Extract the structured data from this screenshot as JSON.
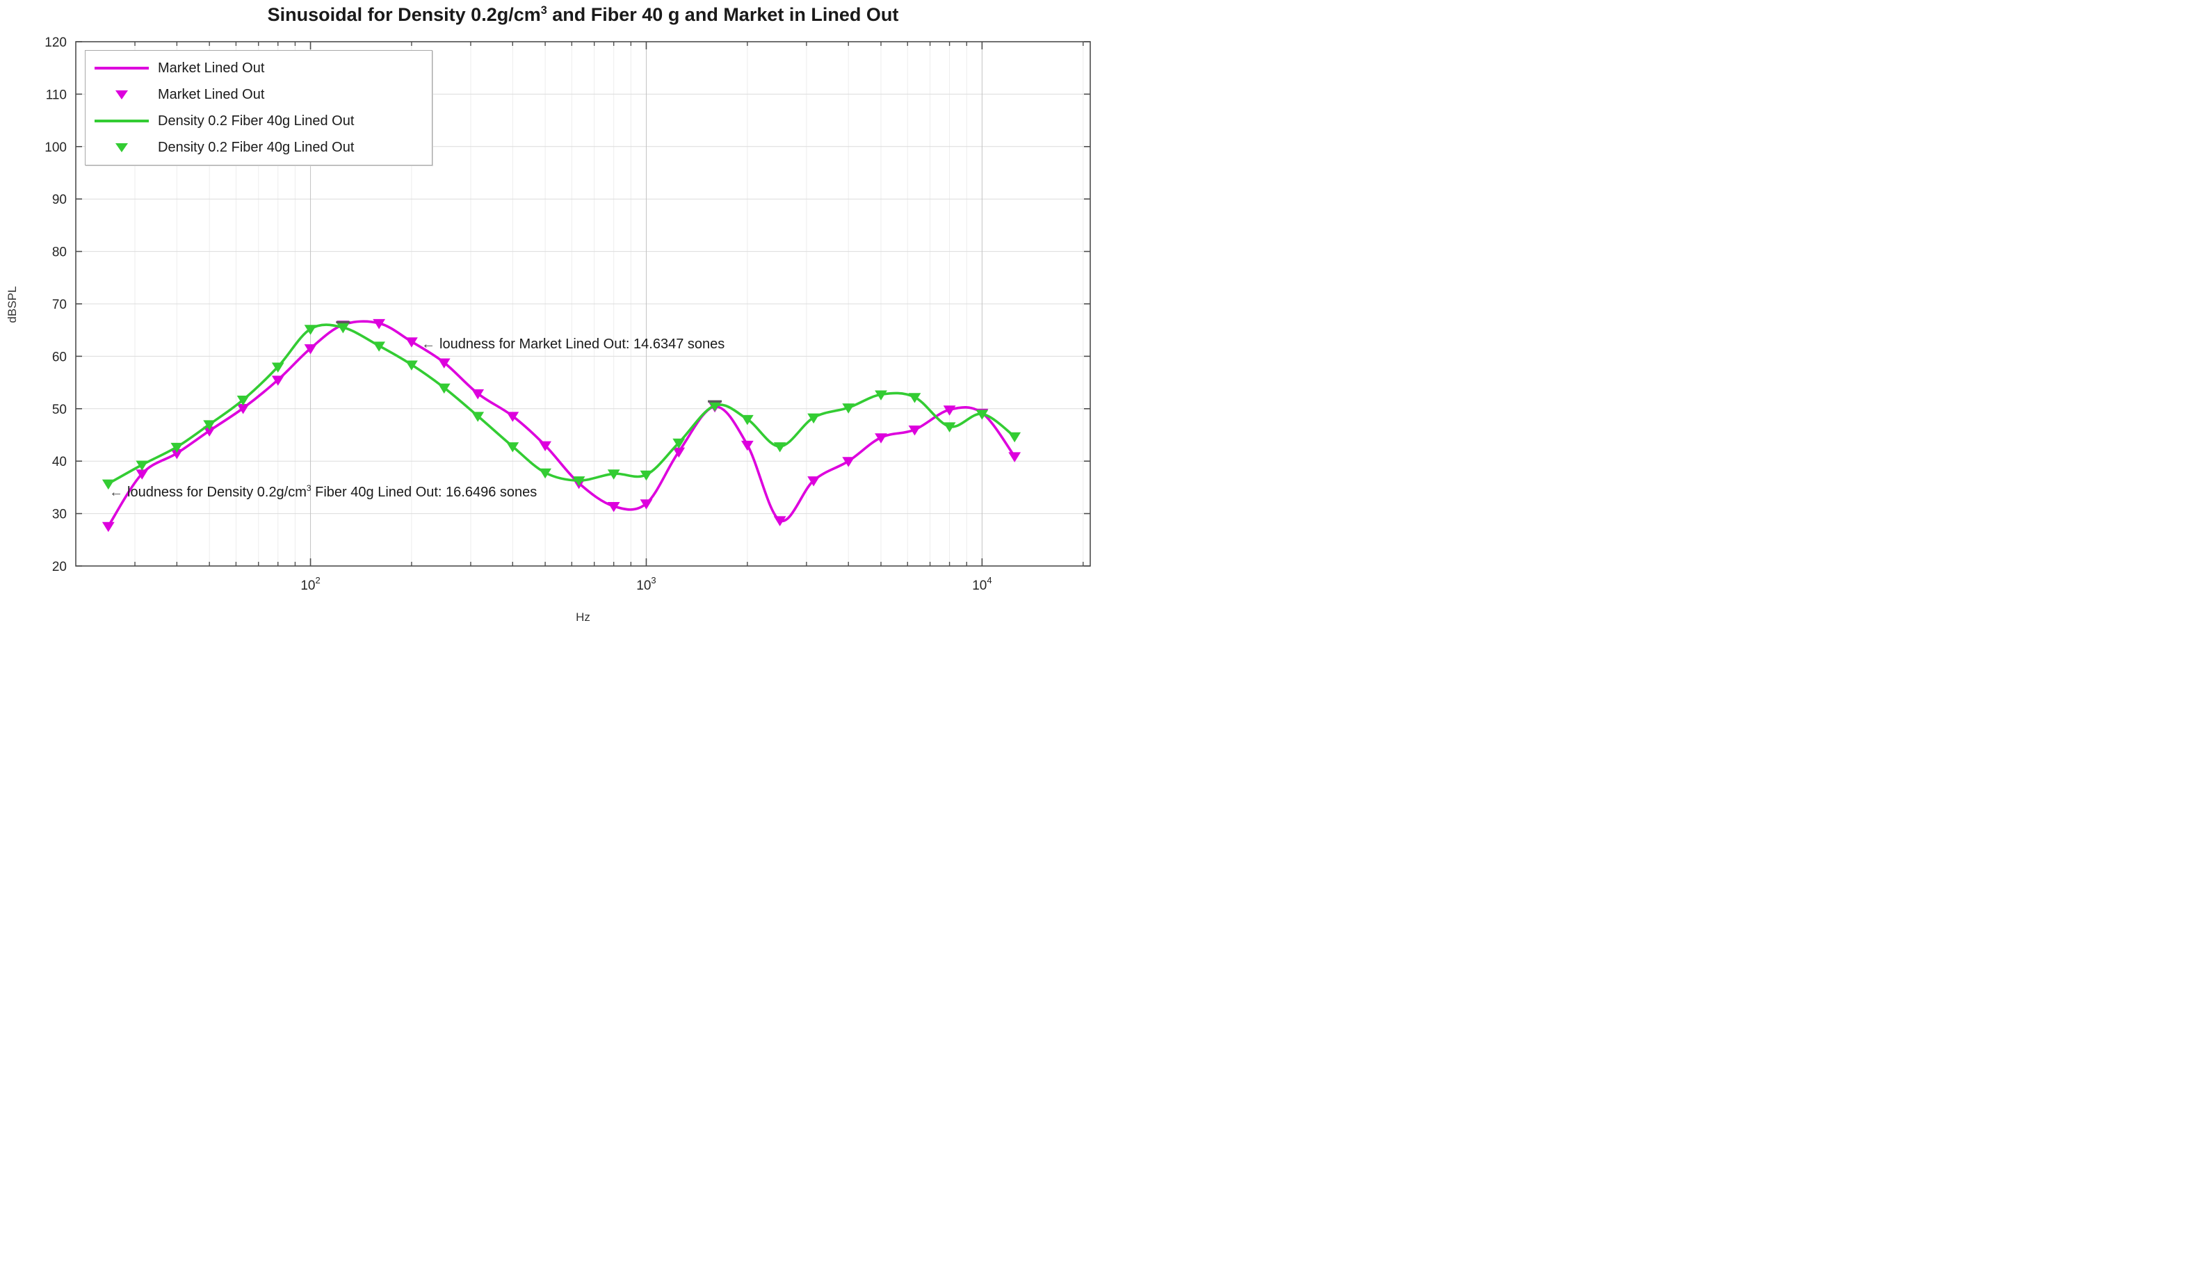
{
  "title": {
    "part1": "Sinusoidal for Density 0.2g/cm",
    "sup": "3",
    "part2": " and Fiber 40 g and Market in Lined Out"
  },
  "axes": {
    "x": {
      "label": "Hz",
      "scale": "log",
      "min": 20,
      "max": 21000,
      "ticks": [
        {
          "base": "10",
          "exp": "2",
          "value": 100
        },
        {
          "base": "10",
          "exp": "3",
          "value": 1000
        },
        {
          "base": "10",
          "exp": "4",
          "value": 10000
        }
      ]
    },
    "y": {
      "label": "dBSPL",
      "min": 20,
      "max": 120,
      "ticks": [
        20,
        30,
        40,
        50,
        60,
        70,
        80,
        90,
        100,
        110,
        120
      ]
    }
  },
  "legend": {
    "items": [
      {
        "label": "Market Lined Out",
        "series": 0,
        "swatch": "line"
      },
      {
        "label": "Market Lined Out",
        "series": 0,
        "swatch": "marker"
      },
      {
        "label": "Density 0.2 Fiber 40g Lined Out",
        "series": 1,
        "swatch": "line"
      },
      {
        "label": "Density 0.2 Fiber 40g Lined Out",
        "series": 1,
        "swatch": "marker"
      }
    ]
  },
  "annotations": [
    {
      "arrow": "←",
      "pre": "loudness for Market Lined Out: 14.6347 sones",
      "sup": "",
      "post": "",
      "x_hz": 214,
      "y_db": 62.3
    },
    {
      "arrow": "←",
      "pre": "loudness for Density 0.2g/cm",
      "sup": "3",
      "post": " Fiber 40g Lined Out: 16.6496 sones",
      "x_hz": 25.2,
      "y_db": 34.0
    }
  ],
  "chart_data": {
    "type": "line",
    "xscale": "log",
    "xlim": [
      20,
      21000
    ],
    "ylim": [
      20,
      120
    ],
    "grid": true,
    "legend_position": "top-left",
    "title": "Sinusoidal for Density 0.2g/cm3 and Fiber 40 g and Market in Lined Out",
    "xlabel": "Hz",
    "ylabel": "dBSPL",
    "x_hz": [
      25,
      31.5,
      40,
      50,
      63,
      80,
      100,
      125,
      160,
      200,
      250,
      315,
      400,
      500,
      630,
      800,
      1000,
      1250,
      1600,
      2000,
      2500,
      3150,
      4000,
      5000,
      6300,
      8000,
      10000,
      12500
    ],
    "series": [
      {
        "name": "Market Lined Out",
        "color": "#DD00DD",
        "marker": "triangle-down",
        "loudness_sones": 14.6347,
        "values": [
          27.6,
          37.6,
          41.5,
          45.8,
          50.1,
          55.5,
          61.5,
          66.0,
          66.3,
          62.8,
          58.8,
          52.9,
          48.6,
          43.0,
          35.8,
          31.4,
          31.9,
          41.8,
          50.4,
          43.1,
          28.7,
          36.3,
          40.0,
          44.5,
          46.0,
          49.8,
          49.2,
          40.9
        ]
      },
      {
        "name": "Density 0.2 Fiber 40g Lined Out",
        "color": "#33CC33",
        "marker": "triangle-down",
        "loudness_sones": 16.6496,
        "values": [
          35.7,
          39.3,
          42.7,
          47.0,
          51.7,
          58.0,
          65.2,
          65.5,
          62.0,
          58.4,
          54.0,
          48.6,
          42.8,
          37.8,
          36.3,
          37.6,
          37.4,
          43.5,
          50.6,
          48.0,
          42.8,
          48.3,
          50.2,
          52.7,
          52.2,
          46.6,
          49.0,
          44.7
        ]
      }
    ],
    "peak_marks": [
      {
        "x_hz": 125,
        "y_db": 66.5
      },
      {
        "x_hz": 1600,
        "y_db": 51.4
      }
    ]
  }
}
